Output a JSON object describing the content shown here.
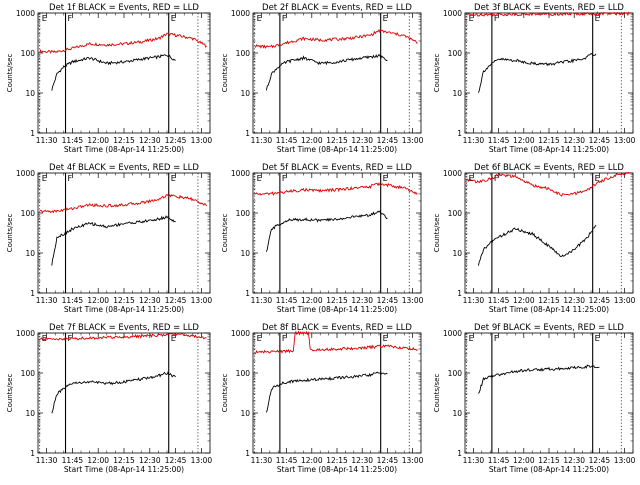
{
  "figure": {
    "background": "#ffffff",
    "colors": {
      "events": "#000000",
      "lld": "#dd0000",
      "axis": "#000000"
    }
  },
  "chart_data": [
    {
      "type": "line",
      "title": "Det 1f BLACK = Events, RED = LLD",
      "xlabel": "Start Time (08-Apr-14 11:25:00)",
      "ylabel": "Counts/sec",
      "yscale": "log",
      "ylim": [
        1,
        1000
      ],
      "xlim": [
        "11:25",
        "13:05"
      ],
      "x_ticks": [
        "11:30",
        "11:45",
        "12:00",
        "12:15",
        "12:30",
        "12:45",
        "13:00"
      ],
      "y_ticks": [
        "1",
        "10",
        "100",
        "1000"
      ],
      "markers": [
        {
          "label": "E",
          "x": "11:26",
          "style": "dotted"
        },
        {
          "label": "F",
          "x": "11:41",
          "style": "solid"
        },
        {
          "label": "E",
          "x": "12:41",
          "style": "solid"
        },
        {
          "label": "",
          "x": "12:58",
          "style": "dotted"
        }
      ],
      "series": [
        {
          "name": "LLD",
          "color": "#dd0000",
          "x": [
            "11:26",
            "11:35",
            "11:45",
            "11:55",
            "12:05",
            "12:15",
            "12:25",
            "12:35",
            "12:40",
            "12:45",
            "12:55",
            "13:03"
          ],
          "y": [
            110,
            105,
            130,
            170,
            160,
            170,
            190,
            230,
            300,
            280,
            230,
            150
          ]
        },
        {
          "name": "Events",
          "color": "#000000",
          "x": [
            "11:33",
            "11:36",
            "11:40",
            "11:45",
            "11:55",
            "12:05",
            "12:15",
            "12:25",
            "12:35",
            "12:40",
            "12:45"
          ],
          "y": [
            12,
            30,
            45,
            60,
            75,
            55,
            60,
            70,
            80,
            90,
            65
          ]
        }
      ]
    },
    {
      "type": "line",
      "title": "Det 2f BLACK = Events, RED = LLD",
      "xlabel": "Start Time (08-Apr-14 11:25:00)",
      "ylabel": "Counts/sec",
      "yscale": "log",
      "ylim": [
        1,
        1000
      ],
      "xlim": [
        "11:25",
        "13:05"
      ],
      "x_ticks": [
        "11:30",
        "11:45",
        "12:00",
        "12:15",
        "12:30",
        "12:45",
        "13:00"
      ],
      "y_ticks": [
        "1",
        "10",
        "100",
        "1000"
      ],
      "markers": [
        {
          "label": "E",
          "x": "11:26",
          "style": "dotted"
        },
        {
          "label": "F",
          "x": "11:41",
          "style": "solid"
        },
        {
          "label": "E",
          "x": "12:41",
          "style": "solid"
        },
        {
          "label": "",
          "x": "12:58",
          "style": "dotted"
        }
      ],
      "series": [
        {
          "name": "LLD",
          "color": "#dd0000",
          "x": [
            "11:26",
            "11:35",
            "11:45",
            "11:55",
            "12:05",
            "12:15",
            "12:25",
            "12:35",
            "12:40",
            "12:45",
            "12:55",
            "13:03"
          ],
          "y": [
            150,
            140,
            180,
            230,
            210,
            220,
            240,
            280,
            360,
            330,
            270,
            180
          ]
        },
        {
          "name": "Events",
          "color": "#000000",
          "x": [
            "11:33",
            "11:36",
            "11:40",
            "11:45",
            "11:55",
            "12:05",
            "12:15",
            "12:25",
            "12:35",
            "12:40",
            "12:45"
          ],
          "y": [
            12,
            30,
            45,
            60,
            75,
            55,
            60,
            70,
            80,
            85,
            65
          ]
        }
      ]
    },
    {
      "type": "line",
      "title": "Det 3f BLACK = Events, RED = LLD",
      "xlabel": "Start Time (08-Apr-14 11:25:00)",
      "ylabel": "Counts/sec",
      "yscale": "log",
      "ylim": [
        1,
        1000
      ],
      "xlim": [
        "11:25",
        "13:05"
      ],
      "x_ticks": [
        "11:30",
        "11:45",
        "12:00",
        "12:15",
        "12:30",
        "12:45",
        "13:00"
      ],
      "y_ticks": [
        "1",
        "10",
        "100",
        "1000"
      ],
      "markers": [
        {
          "label": "E",
          "x": "11:26",
          "style": "dotted"
        },
        {
          "label": "F",
          "x": "11:41",
          "style": "solid"
        },
        {
          "label": "E",
          "x": "12:41",
          "style": "solid"
        },
        {
          "label": "",
          "x": "12:58",
          "style": "dotted"
        }
      ],
      "series": [
        {
          "name": "LLD",
          "color": "#dd0000",
          "x": [
            "11:26",
            "11:45",
            "12:00",
            "12:15",
            "12:30",
            "12:45",
            "13:03"
          ],
          "y": [
            900,
            920,
            930,
            940,
            950,
            960,
            960
          ]
        },
        {
          "name": "Events",
          "color": "#000000",
          "x": [
            "11:33",
            "11:36",
            "11:40",
            "11:45",
            "11:55",
            "12:05",
            "12:15",
            "12:25",
            "12:35",
            "12:40",
            "12:43"
          ],
          "y": [
            10,
            35,
            50,
            70,
            65,
            55,
            52,
            60,
            70,
            90,
            95
          ]
        }
      ]
    },
    {
      "type": "line",
      "title": "Det 4f BLACK = Events, RED = LLD",
      "xlabel": "Start Time (08-Apr-14 11:25:00)",
      "ylabel": "Counts/sec",
      "yscale": "log",
      "ylim": [
        1,
        1000
      ],
      "xlim": [
        "11:25",
        "13:05"
      ],
      "x_ticks": [
        "11:30",
        "11:45",
        "12:00",
        "12:15",
        "12:30",
        "12:45",
        "13:00"
      ],
      "y_ticks": [
        "1",
        "10",
        "100",
        "1000"
      ],
      "markers": [
        {
          "label": "E",
          "x": "11:26",
          "style": "dotted"
        },
        {
          "label": "F",
          "x": "11:41",
          "style": "solid"
        },
        {
          "label": "E",
          "x": "12:41",
          "style": "solid"
        },
        {
          "label": "",
          "x": "12:58",
          "style": "dotted"
        }
      ],
      "series": [
        {
          "name": "LLD",
          "color": "#dd0000",
          "x": [
            "11:26",
            "11:35",
            "11:45",
            "11:55",
            "12:05",
            "12:15",
            "12:25",
            "12:35",
            "12:40",
            "12:45",
            "12:55",
            "13:03"
          ],
          "y": [
            110,
            110,
            130,
            160,
            150,
            160,
            180,
            220,
            280,
            260,
            220,
            150
          ]
        },
        {
          "name": "Events",
          "color": "#000000",
          "x": [
            "11:33",
            "11:36",
            "11:40",
            "11:45",
            "11:55",
            "12:05",
            "12:15",
            "12:25",
            "12:35",
            "12:40",
            "12:45"
          ],
          "y": [
            5,
            25,
            30,
            40,
            55,
            45,
            55,
            60,
            70,
            80,
            60
          ]
        }
      ]
    },
    {
      "type": "line",
      "title": "Det 5f BLACK = Events, RED = LLD",
      "xlabel": "Start Time (08-Apr-14 11:25:00)",
      "ylabel": "Counts/sec",
      "yscale": "log",
      "ylim": [
        1,
        1000
      ],
      "xlim": [
        "11:25",
        "13:05"
      ],
      "x_ticks": [
        "11:30",
        "11:45",
        "12:00",
        "12:15",
        "12:30",
        "12:45",
        "13:00"
      ],
      "y_ticks": [
        "1",
        "10",
        "100",
        "1000"
      ],
      "markers": [
        {
          "label": "E",
          "x": "11:26",
          "style": "dotted"
        },
        {
          "label": "F",
          "x": "11:41",
          "style": "solid"
        },
        {
          "label": "E",
          "x": "12:41",
          "style": "solid"
        },
        {
          "label": "",
          "x": "12:58",
          "style": "dotted"
        }
      ],
      "series": [
        {
          "name": "LLD",
          "color": "#dd0000",
          "x": [
            "11:26",
            "11:35",
            "11:45",
            "11:55",
            "12:05",
            "12:15",
            "12:25",
            "12:35",
            "12:40",
            "12:45",
            "12:55",
            "13:03"
          ],
          "y": [
            300,
            300,
            340,
            380,
            360,
            380,
            420,
            460,
            540,
            500,
            420,
            300
          ]
        },
        {
          "name": "Events",
          "color": "#000000",
          "x": [
            "11:33",
            "11:36",
            "11:40",
            "11:45",
            "11:55",
            "12:05",
            "12:15",
            "12:25",
            "12:35",
            "12:40",
            "12:45"
          ],
          "y": [
            10,
            40,
            50,
            65,
            70,
            65,
            70,
            80,
            90,
            110,
            75
          ]
        }
      ]
    },
    {
      "type": "line",
      "title": "Det 6f BLACK = Events, RED = LLD",
      "xlabel": "Start Time (08-Apr-14 11:25:00)",
      "ylabel": "Counts/sec",
      "yscale": "log",
      "ylim": [
        1,
        1000
      ],
      "xlim": [
        "11:25",
        "13:05"
      ],
      "x_ticks": [
        "11:30",
        "11:45",
        "12:00",
        "12:15",
        "12:30",
        "12:45",
        "13:00"
      ],
      "y_ticks": [
        "1",
        "10",
        "100",
        "1000"
      ],
      "markers": [
        {
          "label": "E",
          "x": "11:26",
          "style": "dotted"
        },
        {
          "label": "F",
          "x": "11:41",
          "style": "solid"
        },
        {
          "label": "E",
          "x": "12:41",
          "style": "solid"
        },
        {
          "label": "",
          "x": "12:58",
          "style": "dotted"
        }
      ],
      "series": [
        {
          "name": "LLD",
          "color": "#dd0000",
          "x": [
            "11:26",
            "11:32",
            "11:38",
            "11:45",
            "11:55",
            "12:05",
            "12:15",
            "12:22",
            "12:30",
            "12:38",
            "12:45",
            "12:55",
            "13:03"
          ],
          "y": [
            700,
            600,
            650,
            900,
            800,
            500,
            400,
            280,
            300,
            380,
            600,
            900,
            1000
          ]
        },
        {
          "name": "Events",
          "color": "#000000",
          "x": [
            "11:33",
            "11:36",
            "11:40",
            "11:45",
            "11:55",
            "12:05",
            "12:15",
            "12:22",
            "12:30",
            "12:38",
            "12:43"
          ],
          "y": [
            5,
            12,
            18,
            25,
            40,
            30,
            15,
            8,
            12,
            25,
            50
          ]
        }
      ]
    },
    {
      "type": "line",
      "title": "Det 7f BLACK = Events, RED = LLD",
      "xlabel": "Start Time (08-Apr-14 11:25:00)",
      "ylabel": "Counts/sec",
      "yscale": "log",
      "ylim": [
        1,
        1000
      ],
      "xlim": [
        "11:25",
        "13:05"
      ],
      "x_ticks": [
        "11:30",
        "11:45",
        "12:00",
        "12:15",
        "12:30",
        "12:45",
        "13:00"
      ],
      "y_ticks": [
        "1",
        "10",
        "100",
        "1000"
      ],
      "markers": [
        {
          "label": "E",
          "x": "11:26",
          "style": "dotted"
        },
        {
          "label": "F",
          "x": "11:41",
          "style": "solid"
        },
        {
          "label": "E",
          "x": "12:41",
          "style": "solid"
        },
        {
          "label": "",
          "x": "12:58",
          "style": "dotted"
        }
      ],
      "series": [
        {
          "name": "LLD",
          "color": "#dd0000",
          "x": [
            "11:26",
            "11:45",
            "12:00",
            "12:15",
            "12:30",
            "12:40",
            "12:45",
            "12:55",
            "13:03"
          ],
          "y": [
            700,
            720,
            760,
            800,
            850,
            900,
            950,
            850,
            750
          ]
        },
        {
          "name": "Events",
          "color": "#000000",
          "x": [
            "11:33",
            "11:36",
            "11:40",
            "11:45",
            "11:55",
            "12:05",
            "12:15",
            "12:25",
            "12:35",
            "12:40",
            "12:45"
          ],
          "y": [
            10,
            30,
            40,
            55,
            60,
            55,
            60,
            70,
            85,
            100,
            80
          ]
        }
      ]
    },
    {
      "type": "line",
      "title": "Det 8f BLACK = Events, RED = LLD",
      "xlabel": "Start Time (08-Apr-14 11:25:00)",
      "ylabel": "Counts/sec",
      "yscale": "log",
      "ylim": [
        1,
        1000
      ],
      "xlim": [
        "11:25",
        "13:05"
      ],
      "x_ticks": [
        "11:30",
        "11:45",
        "12:00",
        "12:15",
        "12:30",
        "12:45",
        "13:00"
      ],
      "y_ticks": [
        "1",
        "10",
        "100",
        "1000"
      ],
      "markers": [
        {
          "label": "E",
          "x": "11:26",
          "style": "dotted"
        },
        {
          "label": "F",
          "x": "11:41",
          "style": "solid"
        },
        {
          "label": "E",
          "x": "12:41",
          "style": "solid"
        },
        {
          "label": "",
          "x": "12:58",
          "style": "dotted"
        }
      ],
      "series": [
        {
          "name": "LLD",
          "color": "#dd0000",
          "x": [
            "11:26",
            "11:45",
            "11:49",
            "11:50",
            "11:58",
            "11:59",
            "12:15",
            "12:30",
            "12:40",
            "12:45",
            "12:55",
            "13:03"
          ],
          "y": [
            330,
            350,
            360,
            1000,
            1000,
            380,
            400,
            420,
            460,
            470,
            420,
            380
          ]
        },
        {
          "name": "Events",
          "color": "#000000",
          "x": [
            "11:33",
            "11:36",
            "11:40",
            "11:45",
            "11:55",
            "12:05",
            "12:15",
            "12:25",
            "12:35",
            "12:40",
            "12:45"
          ],
          "y": [
            10,
            40,
            50,
            60,
            65,
            70,
            75,
            80,
            90,
            100,
            95
          ]
        }
      ]
    },
    {
      "type": "line",
      "title": "Det 9f BLACK = Events, RED = LLD",
      "xlabel": "Start Time (08-Apr-14 11:25:00)",
      "ylabel": "Counts/sec",
      "yscale": "log",
      "ylim": [
        1,
        1000
      ],
      "xlim": [
        "11:25",
        "13:05"
      ],
      "x_ticks": [
        "11:30",
        "11:45",
        "12:00",
        "12:15",
        "12:30",
        "12:45",
        "13:00"
      ],
      "y_ticks": [
        "1",
        "10",
        "100",
        "1000"
      ],
      "markers": [
        {
          "label": "E",
          "x": "11:26",
          "style": "dotted"
        },
        {
          "label": "F",
          "x": "11:41",
          "style": "solid"
        },
        {
          "label": "E",
          "x": "12:41",
          "style": "solid"
        },
        {
          "label": "",
          "x": "12:58",
          "style": "dotted"
        }
      ],
      "series": [
        {
          "name": "Events",
          "color": "#000000",
          "x": [
            "11:33",
            "11:36",
            "11:40",
            "11:45",
            "11:55",
            "12:05",
            "12:15",
            "12:25",
            "12:35",
            "12:40",
            "12:45"
          ],
          "y": [
            30,
            70,
            80,
            90,
            110,
            120,
            125,
            130,
            140,
            150,
            140
          ]
        }
      ]
    }
  ]
}
